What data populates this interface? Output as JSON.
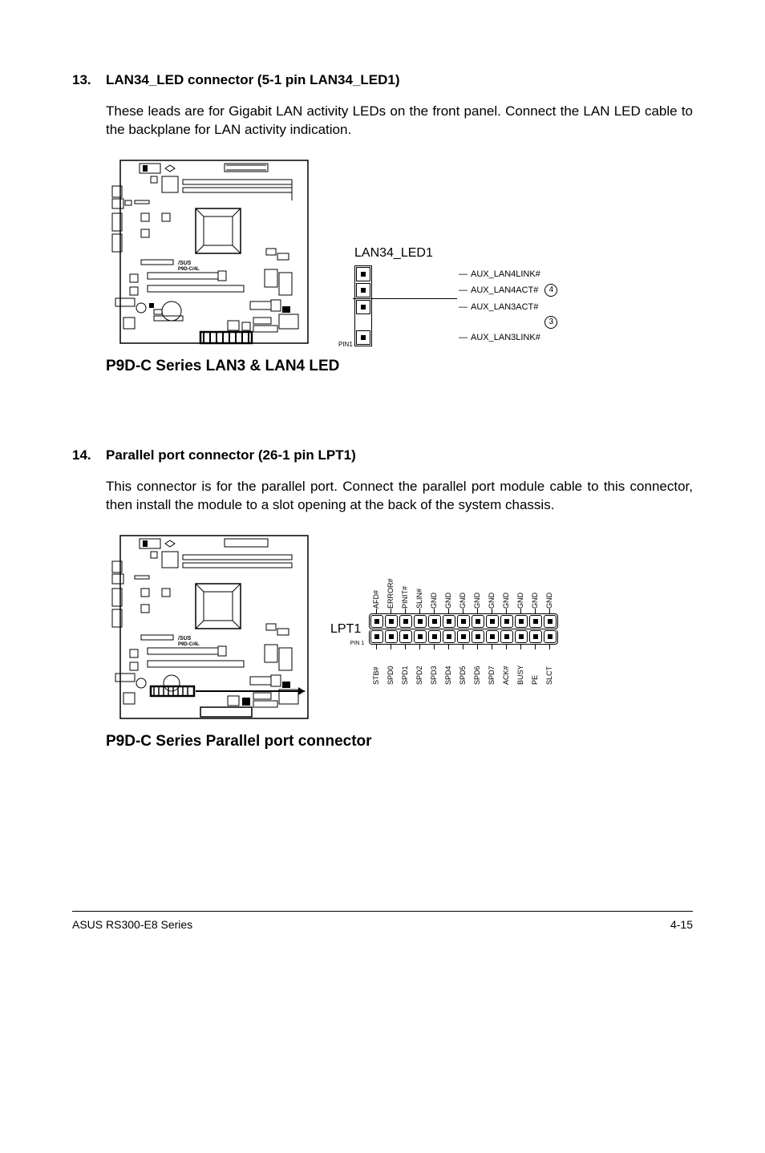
{
  "sec13": {
    "number": "13.",
    "heading": "LAN34_LED connector (5-1 pin LAN34_LED1)",
    "body": "These leads are for Gigabit LAN activity LEDs on the front panel. Connect the LAN LED cable to the backplane for LAN activity indication.",
    "pin_title": "LAN34_LED1",
    "pins": {
      "p4a": "AUX_LAN4LINK#",
      "p4b": "AUX_LAN4ACT#",
      "p3a": "AUX_LAN3ACT#",
      "p3b": "AUX_LAN3LINK#"
    },
    "circ4": "4",
    "circ3": "3",
    "pin1": "PIN1",
    "caption": "P9D-C Series LAN3 & LAN4 LED"
  },
  "sec14": {
    "number": "14.",
    "heading": "Parallel port connector (26-1 pin LPT1)",
    "body": "This connector is for the parallel port. Connect the parallel port module cable to this connector, then install the module to a slot opening at the back of the system chassis.",
    "lpt_label": "LPT1",
    "pin1": "PIN 1",
    "top_labels": [
      "AFD#",
      "ERROR#",
      "PINIT#",
      "SLIN#",
      "GND",
      "GND",
      "GND",
      "GND",
      "GND",
      "GND",
      "GND",
      "GND",
      "GND"
    ],
    "bottom_labels": [
      "STB#",
      "SPD0",
      "SPD1",
      "SPD2",
      "SPD3",
      "SPD4",
      "SPD5",
      "SPD6",
      "SPD7",
      "ACK#",
      "BUSY",
      "PE",
      "SLCT"
    ],
    "caption": "P9D-C Series Parallel port connector"
  },
  "board_label": "P9D-C/4L",
  "footer": {
    "left": "ASUS RS300-E8 Series",
    "right": "4-15"
  },
  "colors": {
    "text": "#000000",
    "bg": "#ffffff"
  }
}
